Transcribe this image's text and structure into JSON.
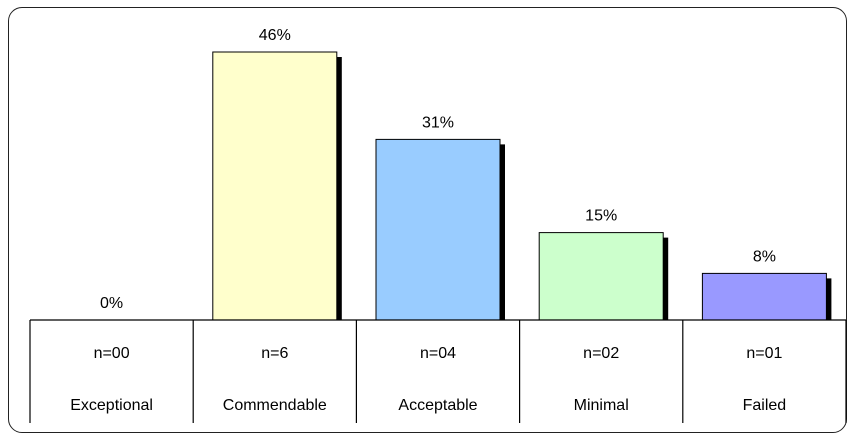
{
  "chart_data": {
    "type": "bar",
    "categories": [
      "Exceptional",
      "Commendable",
      "Acceptable",
      "Minimal",
      "Failed"
    ],
    "counts": [
      "n=00",
      "n=6",
      "n=04",
      "n=02",
      "n=01"
    ],
    "values": [
      0,
      46,
      31,
      15,
      8
    ],
    "value_labels": [
      "0%",
      "46%",
      "31%",
      "15%",
      "8%"
    ],
    "bar_colors": [
      "#ffffcc",
      "#ffffcc",
      "#99ccff",
      "#ccffcc",
      "#9999ff"
    ],
    "shadow_color": "#000000",
    "ylim": [
      0,
      46
    ],
    "grid": false,
    "legend": "none"
  }
}
